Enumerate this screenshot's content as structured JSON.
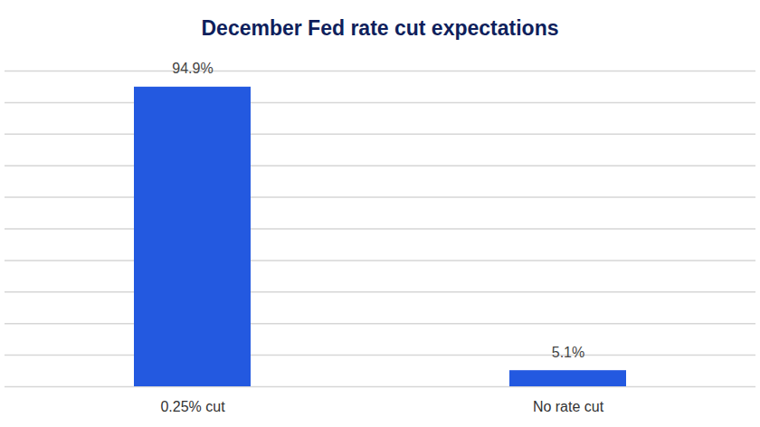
{
  "chart_data": {
    "type": "bar",
    "title": "December Fed rate cut expectations",
    "categories": [
      "0.25% cut",
      "No rate cut"
    ],
    "values": [
      94.9,
      5.1
    ],
    "value_labels": [
      "94.9%",
      "5.1%"
    ],
    "color": "#2359e0",
    "ylim": [
      0,
      100
    ],
    "yticks": [
      0,
      10,
      20,
      30,
      40,
      50,
      60,
      70,
      80,
      90,
      100
    ],
    "grid": true,
    "data_labels": true,
    "tick_labels": "x"
  }
}
